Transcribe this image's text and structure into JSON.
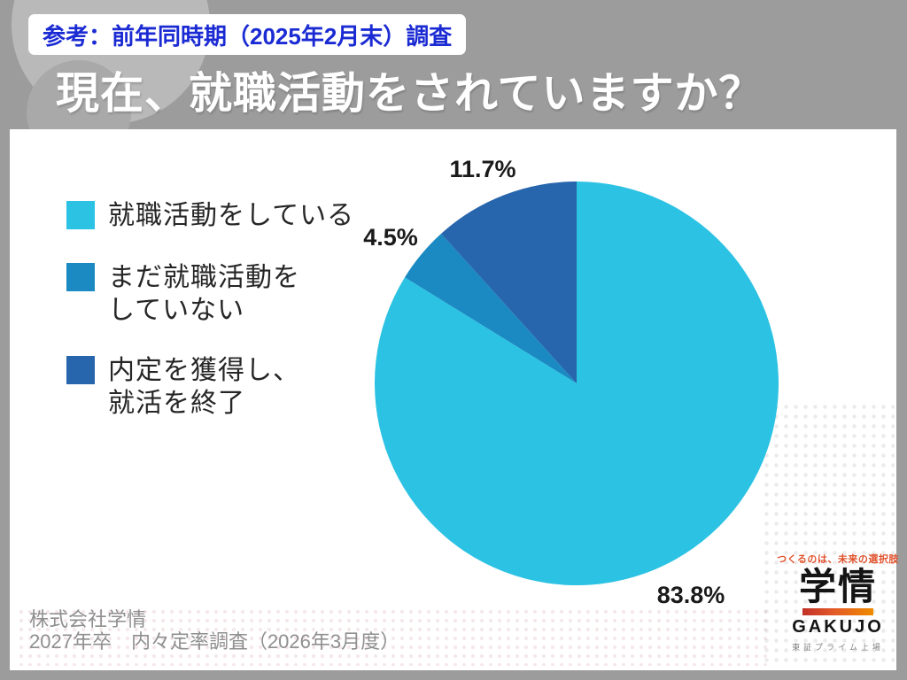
{
  "header": {
    "badge": "参考：前年同時期（2025年2月末）調査",
    "title": "現在、就職活動をされていますか？"
  },
  "chart_data": {
    "type": "pie",
    "title": "現在、就職活動をされていますか？",
    "categories": [
      "就職活動をしている",
      "まだ就職活動をしていない",
      "内定を獲得し、就活を終了"
    ],
    "values": [
      83.8,
      4.5,
      11.7
    ],
    "unit": "%",
    "data_labels": [
      "83.8%",
      "4.5%",
      "11.7%"
    ],
    "colors": [
      "#2cc2e3",
      "#1b8ac2",
      "#2765ac"
    ],
    "start_angle_deg": 0,
    "direction": "clockwise",
    "legend_position": "left"
  },
  "legend": {
    "items": [
      {
        "color": "#2cc2e3",
        "label_lines": [
          "就職活動をしている",
          ""
        ]
      },
      {
        "color": "#1b8ac2",
        "label_lines": [
          "まだ就職活動を",
          "していない"
        ]
      },
      {
        "color": "#2765ac",
        "label_lines": [
          "内定を獲得し、",
          "就活を終了"
        ]
      }
    ]
  },
  "footer": {
    "company": "株式会社学情",
    "survey": "2027年卒　内々定率調査（2026年3月度）"
  },
  "logo": {
    "tagline": "つくるのは、未来の選択肢",
    "name_jp": "学情",
    "name_en": "GAKUJO",
    "listing": "東証プライム上場"
  },
  "colors": {
    "slide_background": "#9c9c9c",
    "panel_background": "#ffffff",
    "badge_text": "#1b2bd3",
    "title_text": "#ffffff",
    "tagline_orange": "#e0522c"
  }
}
